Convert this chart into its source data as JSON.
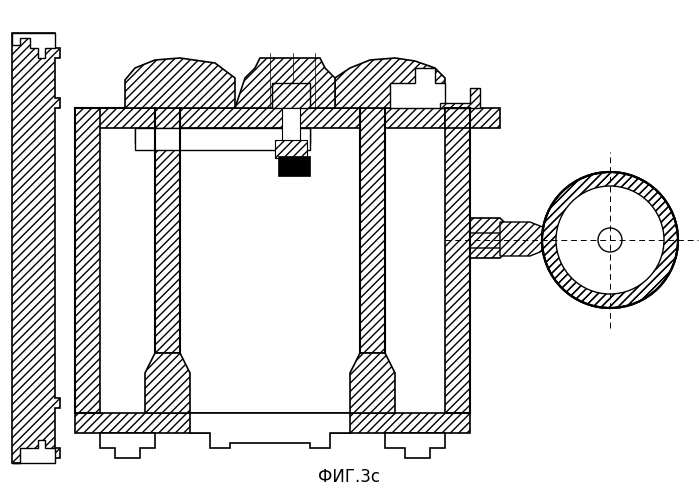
{
  "title": "ФИГ.3с",
  "title_fontsize": 12,
  "bg_color": "#ffffff",
  "line_color": "#000000",
  "figsize": [
    6.99,
    4.98
  ],
  "dpi": 100
}
